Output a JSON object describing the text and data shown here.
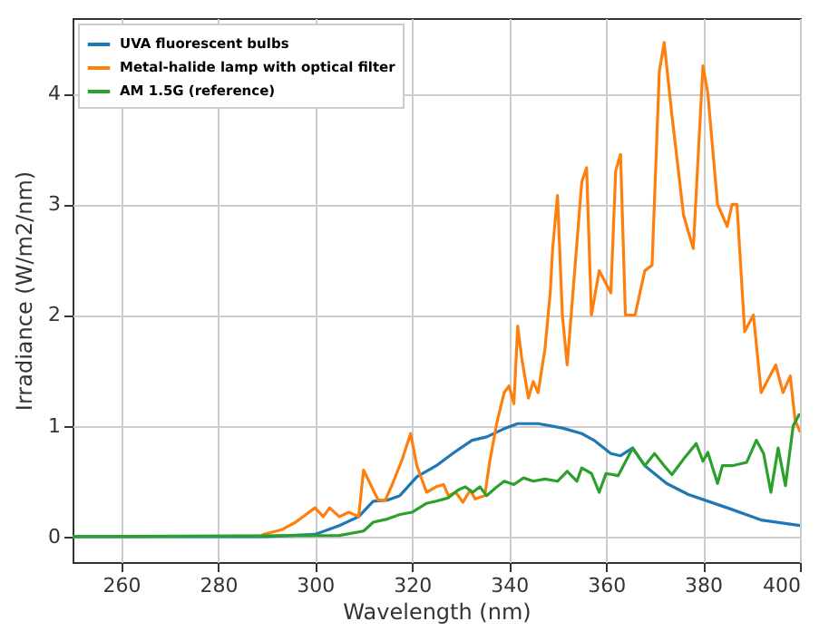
{
  "chart_data": {
    "type": "line",
    "xlabel": "Wavelength (nm)",
    "ylabel": "Irradiance (W/m2/nm)",
    "xlim": [
      250,
      400
    ],
    "ylim": [
      -0.23,
      4.68
    ],
    "xticks": [
      260,
      280,
      300,
      320,
      340,
      360,
      380,
      400
    ],
    "yticks": [
      0,
      1,
      2,
      3,
      4
    ],
    "grid": true,
    "legend": "top left",
    "series": [
      {
        "name": "UVA fluorescent bulbs",
        "color": "#1f77b4",
        "x": [
          250,
          290,
          300,
          305,
          309,
          312,
          315,
          317.5,
          321,
          325,
          328.7,
          332.4,
          335.4,
          338.8,
          341.8,
          346,
          351,
          355,
          357.5,
          361,
          363,
          365.5,
          368,
          372.5,
          377,
          385,
          392,
          400
        ],
        "values": [
          0,
          0,
          0.02,
          0.1,
          0.18,
          0.32,
          0.33,
          0.37,
          0.54,
          0.64,
          0.76,
          0.87,
          0.9,
          0.97,
          1.02,
          1.02,
          0.98,
          0.93,
          0.87,
          0.75,
          0.73,
          0.8,
          0.64,
          0.48,
          0.38,
          0.26,
          0.15,
          0.1
        ]
      },
      {
        "name": "Metal-halide lamp with optical filter",
        "color": "#ff7f0e",
        "x": [
          289.3,
          293,
          296,
          300,
          301.7,
          303,
          305,
          307,
          309,
          310,
          312,
          313,
          314.5,
          316,
          318,
          319.7,
          321,
          323,
          325,
          326.5,
          327.5,
          329,
          330.5,
          332,
          333,
          335,
          336,
          337.5,
          339,
          340,
          341,
          341.8,
          342.6,
          344,
          345,
          346,
          347.4,
          348.5,
          349,
          350,
          351,
          352,
          355,
          356,
          357,
          358.6,
          361,
          362,
          363,
          364,
          366,
          368,
          369.5,
          371,
          372,
          373.6,
          376,
          378,
          380,
          381,
          383,
          385,
          386,
          387,
          388.6,
          390.4,
          392,
          395,
          396.5,
          398,
          399,
          400
        ],
        "values": [
          0.02,
          0.06,
          0.13,
          0.26,
          0.18,
          0.26,
          0.18,
          0.22,
          0.18,
          0.6,
          0.42,
          0.33,
          0.33,
          0.48,
          0.7,
          0.93,
          0.64,
          0.4,
          0.45,
          0.47,
          0.37,
          0.4,
          0.31,
          0.42,
          0.34,
          0.37,
          0.67,
          1.03,
          1.3,
          1.36,
          1.2,
          1.9,
          1.62,
          1.25,
          1.4,
          1.3,
          1.69,
          2.2,
          2.6,
          3.08,
          2.0,
          1.55,
          3.2,
          3.33,
          2.0,
          2.4,
          2.2,
          3.3,
          3.45,
          2.0,
          2.0,
          2.4,
          2.45,
          4.2,
          4.46,
          3.8,
          2.9,
          2.6,
          4.25,
          4.0,
          3.0,
          2.8,
          3.0,
          3.0,
          1.85,
          2.0,
          1.3,
          1.55,
          1.3,
          1.45,
          1.05,
          0.95
        ]
      },
      {
        "name": "AM 1.5G (reference)",
        "color": "#2ca02c",
        "x": [
          250,
          305,
          310,
          312,
          315,
          317.5,
          320,
          323,
          325,
          327.5,
          329.5,
          331,
          332.5,
          334,
          335.4,
          337.5,
          339,
          341,
          343,
          345,
          347.4,
          350,
          352,
          354,
          355,
          357,
          358.6,
          360,
          362.5,
          365.5,
          368,
          370,
          372,
          373.6,
          376,
          378.6,
          380,
          381,
          383,
          384,
          386,
          389,
          391,
          392.5,
          394,
          395.5,
          397,
          398.6,
          399.8
        ],
        "values": [
          0,
          0.01,
          0.05,
          0.13,
          0.16,
          0.2,
          0.22,
          0.3,
          0.32,
          0.35,
          0.42,
          0.45,
          0.4,
          0.45,
          0.37,
          0.45,
          0.5,
          0.47,
          0.53,
          0.5,
          0.52,
          0.5,
          0.59,
          0.5,
          0.62,
          0.57,
          0.4,
          0.57,
          0.55,
          0.8,
          0.64,
          0.75,
          0.64,
          0.56,
          0.7,
          0.84,
          0.68,
          0.76,
          0.48,
          0.64,
          0.64,
          0.67,
          0.87,
          0.75,
          0.4,
          0.8,
          0.46,
          1.0,
          1.1
        ]
      }
    ]
  }
}
